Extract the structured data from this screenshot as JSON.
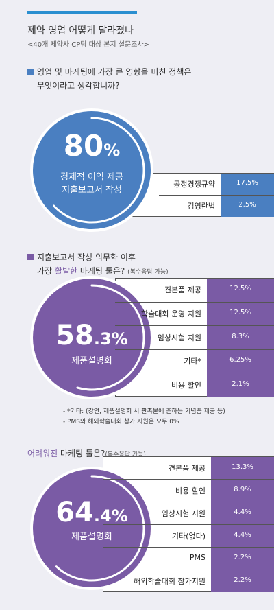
{
  "header": {
    "title": "제약 영업 어떻게 달라졌나",
    "subtitle": "<40개 제약사 CP팀 대상 본지 설문조사>"
  },
  "colors": {
    "blue": "#4a7fc1",
    "purple": "#7a5ba5",
    "accent": "#2a8fd0"
  },
  "chart_data": [
    {
      "type": "table",
      "question_line1": "영업 및 마케팅에 가장 큰 영향을 미친 정책은",
      "question_line2": "무엇이라고 생각합니까?",
      "highlight": {
        "value": "80",
        "unit": "%",
        "label_line1": "경제적 이익 제공",
        "label_line2": "지출보고서 작성"
      },
      "categories": [
        "공정경쟁규약",
        "김영란법"
      ],
      "values": [
        "17.5%",
        "2.5%"
      ]
    },
    {
      "type": "table",
      "question_line1": "지출보고서 작성 의무화 이후",
      "question_line2_pre": "가장 ",
      "question_line2_hl": "활발한",
      "question_line2_post": " 마케팅 툴은?",
      "question_note": "(복수응답 가능)",
      "highlight": {
        "value": "58",
        "decimal": ".3",
        "unit": "%",
        "label": "제품설명회"
      },
      "categories": [
        "견본품 제공",
        "학술대회 운영 지원",
        "임상시험 지원",
        "기타*",
        "비용 할인"
      ],
      "values": [
        "12.5%",
        "12.5%",
        "8.3%",
        "6.25%",
        "2.1%"
      ],
      "notes": [
        "- *기타: (강연, 제품설명회 시 판촉물에 준하는 기념품 제공 등)",
        "- PMS와 해외학술대회 참가 지원은 모두 0%"
      ]
    },
    {
      "type": "table",
      "question_hl": "어려워진",
      "question_post": " 마케팅 툴은?",
      "question_note": "(복수응답 가능)",
      "highlight": {
        "value": "64",
        "decimal": ".4",
        "unit": "%",
        "label": "제품설명회"
      },
      "categories": [
        "견본품 제공",
        "비용 할인",
        "임상시험 지원",
        "기타(없다)",
        "PMS",
        "해외학술대회 참가지원"
      ],
      "values": [
        "13.3%",
        "8.9%",
        "4.4%",
        "4.4%",
        "2.2%",
        "2.2%"
      ]
    }
  ]
}
